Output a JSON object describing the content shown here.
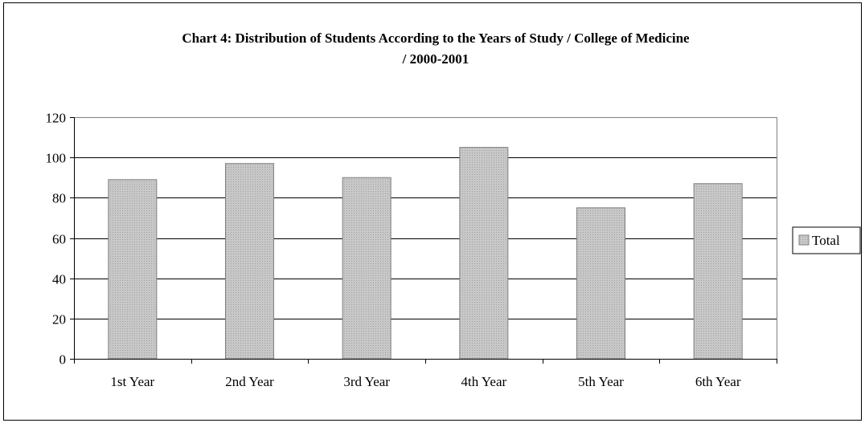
{
  "chart_data": {
    "type": "bar",
    "title_lines": [
      "Chart 4: Distribution of Students According to the Years of Study / College of Medicine",
      "/ 2000-2001"
    ],
    "xlabel": "",
    "ylabel": "",
    "categories": [
      "1st Year",
      "2nd Year",
      "3rd Year",
      "4th Year",
      "5th Year",
      "6th Year"
    ],
    "series": [
      {
        "name": "Total",
        "values": [
          89,
          97,
          90,
          105,
          75,
          87
        ]
      }
    ],
    "ylim": [
      0,
      120
    ],
    "yticks": [
      0,
      20,
      40,
      60,
      80,
      100,
      120
    ],
    "grid": true,
    "legend": "right",
    "colors": {
      "bar_fill": "#c0c0c0",
      "bar_edge": "#7f7f7f",
      "axis": "#000000",
      "grid": "#000000"
    }
  }
}
